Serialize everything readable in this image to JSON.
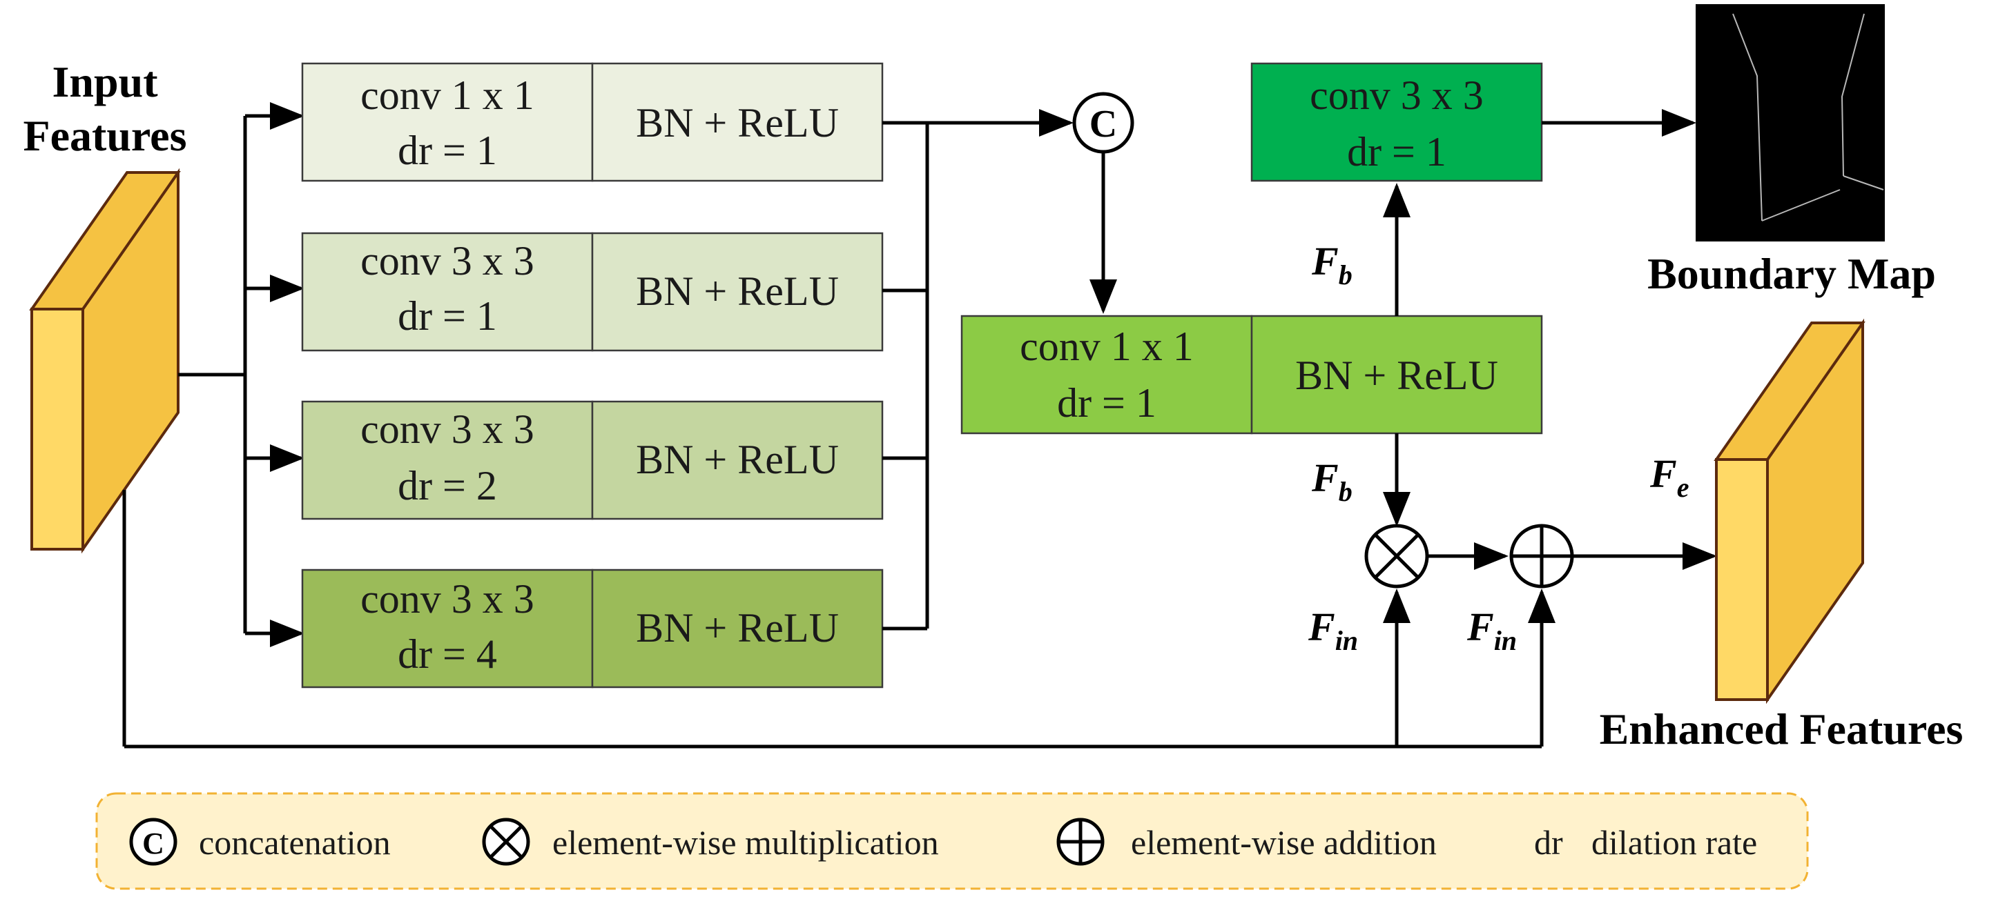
{
  "input_title": [
    "Input",
    "Features"
  ],
  "branches": [
    {
      "conv": "conv 1 x 1",
      "dr": "dr = 1",
      "bn": "BN + ReLU",
      "color": "#ECF0E0"
    },
    {
      "conv": "conv 3 x 3",
      "dr": "dr = 1",
      "bn": "BN + ReLU",
      "color": "#DCE6C8"
    },
    {
      "conv": "conv 3 x 3",
      "dr": "dr = 2",
      "bn": "BN + ReLU",
      "color": "#C4D6A0"
    },
    {
      "conv": "conv 3 x 3",
      "dr": "dr = 4",
      "bn": "BN + ReLU",
      "color": "#9BBB59"
    }
  ],
  "concat_symbol": "C",
  "fuse_block": {
    "conv": "conv 1 x 1",
    "dr": "dr = 1",
    "bn": "BN + ReLU",
    "color": "#8CCB45"
  },
  "boundary_block": {
    "conv": "conv 3 x 3",
    "dr": "dr = 1",
    "color": "#00B050"
  },
  "boundary_title": "Boundary Map",
  "enhanced_title": "Enhanced Features",
  "labels": {
    "fb_base": "F",
    "fb_sub": "b",
    "fin_base": "F",
    "fin_sub": "in",
    "fe_base": "F",
    "fe_sub": "e"
  },
  "legend": {
    "concat_symbol": "C",
    "concat_label": "concatenation",
    "mult_label": "element-wise multiplication",
    "add_label": "element-wise addition",
    "dr_symbol": "dr",
    "dr_label": "dilation rate"
  },
  "colors": {
    "feature_front": "#FFD966",
    "feature_side": "#F5C242",
    "feature_border": "#5C2A0E",
    "legend_bg": "#FFF2CC",
    "legend_border": "#F2B233"
  }
}
